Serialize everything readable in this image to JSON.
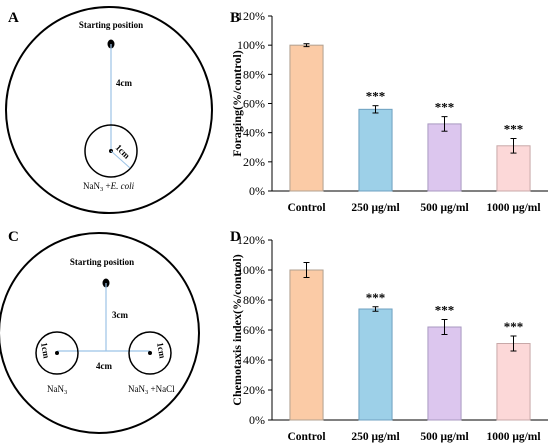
{
  "diagrams": [
    {
      "panel_letter": "A",
      "starting_label": "Starting position",
      "distance_label": "4cm",
      "radius_label": "1cm",
      "target_label": "NaN",
      "target_sub": "3",
      "target_suffix": " +",
      "target_italic": "E. coli"
    },
    {
      "panel_letter": "C",
      "starting_label": "Starting position",
      "vertical_label": "3cm",
      "horizontal_label": "4cm",
      "left_radius_label": "1cm",
      "right_radius_label": "1cm",
      "left_label": "NaN",
      "left_sub": "3",
      "right_label": "NaN",
      "right_sub": "3",
      "right_suffix": " +NaCl"
    }
  ],
  "chart_data": [
    {
      "type": "bar",
      "panel_letter": "B",
      "categories": [
        "Control",
        "250 μg/ml",
        "500 μg/ml",
        "1000 μg/ml"
      ],
      "values": [
        100,
        56,
        46,
        31
      ],
      "errors": [
        1,
        2.5,
        5,
        5
      ],
      "significance": [
        "",
        "***",
        "***",
        "***"
      ],
      "ylabel": "Foraging(%/control)",
      "xlabel": "",
      "ylim": [
        0,
        120
      ],
      "yticks": [
        "0%",
        "20%",
        "40%",
        "60%",
        "80%",
        "100%",
        "120%"
      ],
      "bar_colors": [
        "#fbcba6",
        "#9dd0e8",
        "#dcc6ee",
        "#fcd8d8"
      ],
      "bar_borders": [
        "#b0a090",
        "#6fa0c0",
        "#a898c0",
        "#c8a8a8"
      ],
      "grid": false
    },
    {
      "type": "bar",
      "panel_letter": "D",
      "categories": [
        "Control",
        "250 μg/ml",
        "500 μg/ml",
        "1000 μg/ml"
      ],
      "values": [
        100,
        74,
        62,
        51
      ],
      "errors": [
        5,
        1.5,
        5,
        5
      ],
      "significance": [
        "",
        "***",
        "***",
        "***"
      ],
      "ylabel": "Chemotaxis index(%/control)",
      "xlabel": "",
      "ylim": [
        0,
        120
      ],
      "yticks": [
        "0%",
        "20%",
        "40%",
        "60%",
        "80%",
        "100%",
        "120%"
      ],
      "bar_colors": [
        "#fbcba6",
        "#9dd0e8",
        "#dcc6ee",
        "#fcd8d8"
      ],
      "bar_borders": [
        "#b0a090",
        "#6fa0c0",
        "#a898c0",
        "#c8a8a8"
      ],
      "grid": false
    }
  ]
}
